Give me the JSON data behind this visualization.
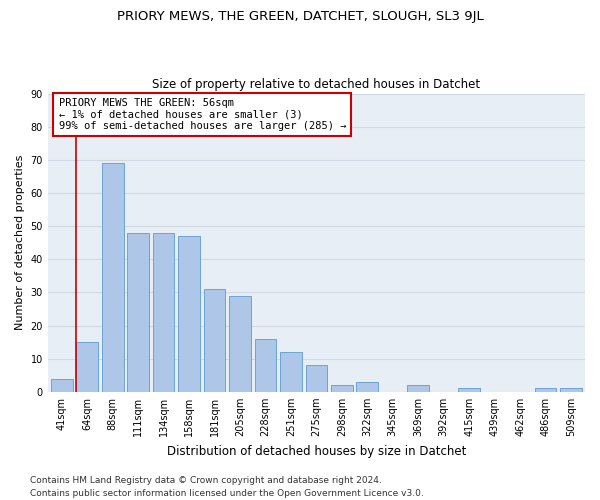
{
  "title": "PRIORY MEWS, THE GREEN, DATCHET, SLOUGH, SL3 9JL",
  "subtitle": "Size of property relative to detached houses in Datchet",
  "xlabel": "Distribution of detached houses by size in Datchet",
  "ylabel": "Number of detached properties",
  "categories": [
    "41sqm",
    "64sqm",
    "88sqm",
    "111sqm",
    "134sqm",
    "158sqm",
    "181sqm",
    "205sqm",
    "228sqm",
    "251sqm",
    "275sqm",
    "298sqm",
    "322sqm",
    "345sqm",
    "369sqm",
    "392sqm",
    "415sqm",
    "439sqm",
    "462sqm",
    "486sqm",
    "509sqm"
  ],
  "values": [
    4,
    15,
    69,
    48,
    48,
    47,
    31,
    29,
    16,
    12,
    8,
    2,
    3,
    0,
    2,
    0,
    1,
    0,
    0,
    1,
    1
  ],
  "bar_color": "#aec6e8",
  "bar_edge_color": "#5b9bd5",
  "highlight_line_color": "#cc0000",
  "annotation_text": "PRIORY MEWS THE GREEN: 56sqm\n← 1% of detached houses are smaller (3)\n99% of semi-detached houses are larger (285) →",
  "annotation_box_color": "#ffffff",
  "annotation_box_edge_color": "#cc0000",
  "ylim": [
    0,
    90
  ],
  "yticks": [
    0,
    10,
    20,
    30,
    40,
    50,
    60,
    70,
    80,
    90
  ],
  "grid_color": "#d0d8e4",
  "bg_color": "#e8eef5",
  "footer_line1": "Contains HM Land Registry data © Crown copyright and database right 2024.",
  "footer_line2": "Contains public sector information licensed under the Open Government Licence v3.0.",
  "title_fontsize": 9.5,
  "subtitle_fontsize": 8.5,
  "xlabel_fontsize": 8.5,
  "ylabel_fontsize": 8,
  "tick_fontsize": 7,
  "annotation_fontsize": 7.5,
  "footer_fontsize": 6.5
}
